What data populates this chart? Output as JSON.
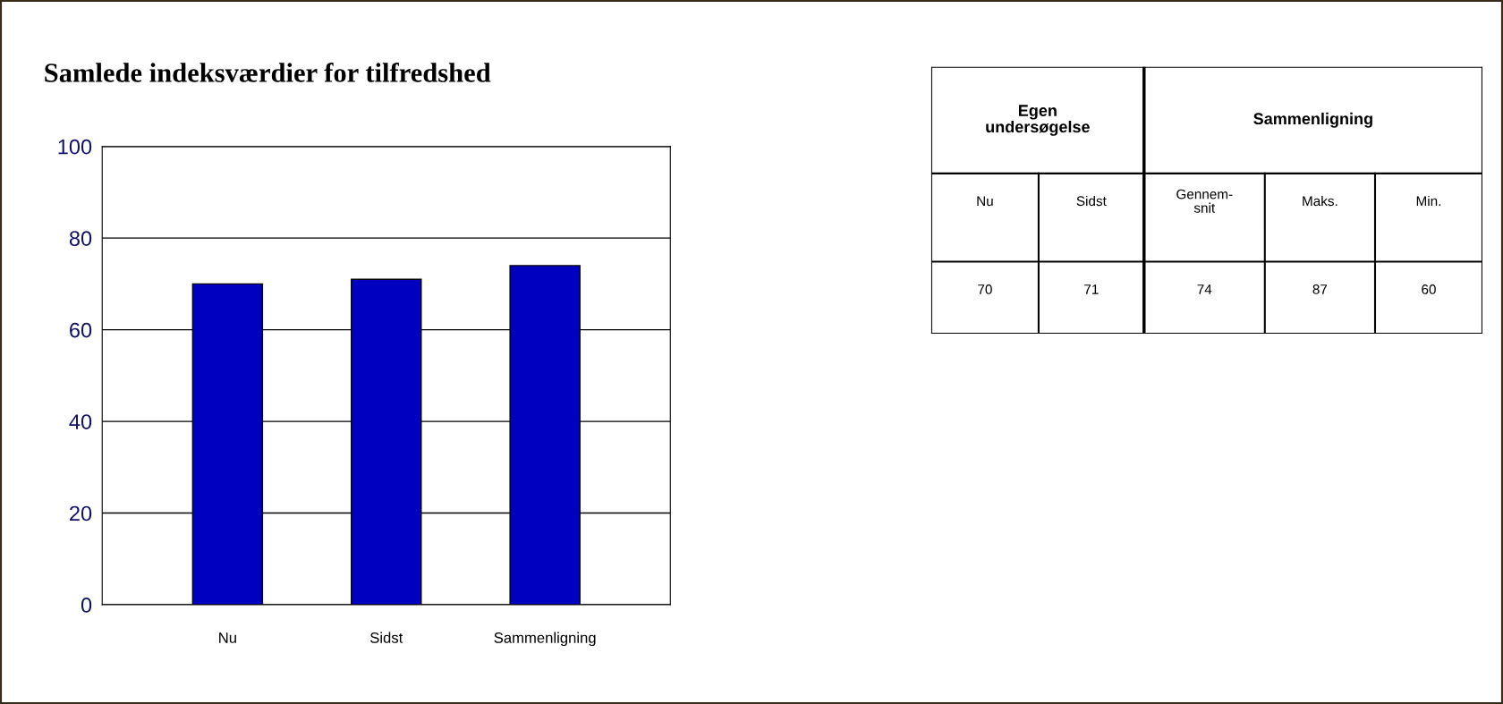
{
  "chart_data": [
    {
      "type": "bar",
      "title": "Samlede indeksværdier for tilfredshed",
      "categories": [
        "Nu",
        "Sidst",
        "Sammenligning"
      ],
      "values": [
        70,
        71,
        74
      ],
      "color": "#0000c0",
      "ylim": [
        0,
        100
      ],
      "yticks": [
        0,
        20,
        40,
        60,
        80,
        100
      ],
      "grid": "y",
      "legend": false
    },
    {
      "type": "other",
      "annotations": [
        "Egen\nundersøgelse",
        "Sammenligning",
        "Nu",
        "Sidst",
        "Gennem-\nsnit",
        "Maks.",
        "Min.",
        "70",
        "71",
        "74",
        "87",
        "60"
      ]
    }
  ]
}
